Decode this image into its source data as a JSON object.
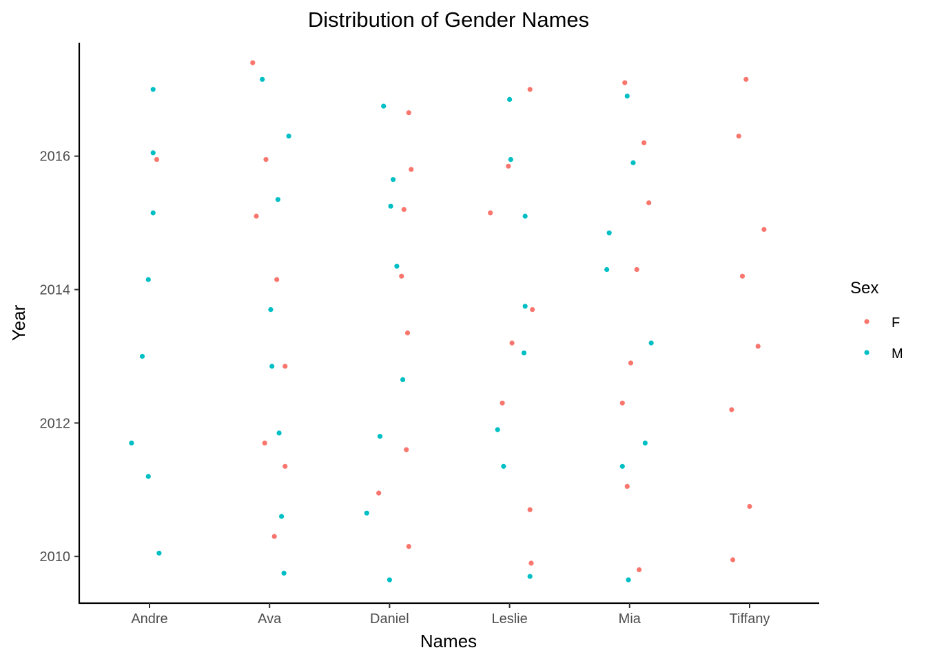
{
  "chart_data": {
    "type": "scatter",
    "title": "Distribution of Gender Names",
    "xlabel": "Names",
    "ylabel": "Year",
    "categories": [
      "Andre",
      "Ava",
      "Daniel",
      "Leslie",
      "Mia",
      "Tiffany"
    ],
    "y_ticks": [
      2010,
      2012,
      2014,
      2016
    ],
    "ylim": [
      2009.3,
      2017.7
    ],
    "grid": false,
    "jitter": true,
    "legend": {
      "title": "Sex",
      "position": "right"
    },
    "series": [
      {
        "name": "F",
        "color": "#F8766D",
        "points": [
          {
            "category": "Andre",
            "offset": 0.06,
            "y": 2015.95
          },
          {
            "category": "Ava",
            "offset": -0.14,
            "y": 2017.4
          },
          {
            "category": "Ava",
            "offset": -0.03,
            "y": 2015.95
          },
          {
            "category": "Ava",
            "offset": -0.11,
            "y": 2015.1
          },
          {
            "category": "Ava",
            "offset": 0.06,
            "y": 2014.15
          },
          {
            "category": "Ava",
            "offset": 0.13,
            "y": 2012.85
          },
          {
            "category": "Ava",
            "offset": -0.04,
            "y": 2011.7
          },
          {
            "category": "Ava",
            "offset": 0.13,
            "y": 2011.35
          },
          {
            "category": "Ava",
            "offset": 0.04,
            "y": 2010.3
          },
          {
            "category": "Daniel",
            "offset": 0.16,
            "y": 2016.65
          },
          {
            "category": "Daniel",
            "offset": 0.18,
            "y": 2015.8
          },
          {
            "category": "Daniel",
            "offset": 0.12,
            "y": 2015.2
          },
          {
            "category": "Daniel",
            "offset": 0.1,
            "y": 2014.2
          },
          {
            "category": "Daniel",
            "offset": 0.15,
            "y": 2013.35
          },
          {
            "category": "Daniel",
            "offset": 0.14,
            "y": 2011.6
          },
          {
            "category": "Daniel",
            "offset": -0.09,
            "y": 2010.95
          },
          {
            "category": "Daniel",
            "offset": 0.16,
            "y": 2010.15
          },
          {
            "category": "Leslie",
            "offset": 0.17,
            "y": 2017.0
          },
          {
            "category": "Leslie",
            "offset": -0.01,
            "y": 2015.85
          },
          {
            "category": "Leslie",
            "offset": -0.16,
            "y": 2015.15
          },
          {
            "category": "Leslie",
            "offset": 0.19,
            "y": 2013.7
          },
          {
            "category": "Leslie",
            "offset": 0.02,
            "y": 2013.2
          },
          {
            "category": "Leslie",
            "offset": -0.06,
            "y": 2012.3
          },
          {
            "category": "Leslie",
            "offset": 0.17,
            "y": 2010.7
          },
          {
            "category": "Leslie",
            "offset": 0.18,
            "y": 2009.9
          },
          {
            "category": "Mia",
            "offset": -0.04,
            "y": 2017.1
          },
          {
            "category": "Mia",
            "offset": 0.12,
            "y": 2016.2
          },
          {
            "category": "Mia",
            "offset": 0.16,
            "y": 2015.3
          },
          {
            "category": "Mia",
            "offset": 0.06,
            "y": 2014.3
          },
          {
            "category": "Mia",
            "offset": 0.01,
            "y": 2012.9
          },
          {
            "category": "Mia",
            "offset": -0.06,
            "y": 2012.3
          },
          {
            "category": "Mia",
            "offset": -0.02,
            "y": 2011.05
          },
          {
            "category": "Mia",
            "offset": 0.08,
            "y": 2009.8
          },
          {
            "category": "Tiffany",
            "offset": -0.03,
            "y": 2017.15
          },
          {
            "category": "Tiffany",
            "offset": -0.09,
            "y": 2016.3
          },
          {
            "category": "Tiffany",
            "offset": 0.12,
            "y": 2014.9
          },
          {
            "category": "Tiffany",
            "offset": -0.06,
            "y": 2014.2
          },
          {
            "category": "Tiffany",
            "offset": 0.07,
            "y": 2013.15
          },
          {
            "category": "Tiffany",
            "offset": -0.15,
            "y": 2012.2
          },
          {
            "category": "Tiffany",
            "offset": 0.0,
            "y": 2010.75
          },
          {
            "category": "Tiffany",
            "offset": -0.14,
            "y": 2009.95
          }
        ]
      },
      {
        "name": "M",
        "color": "#00BFC4",
        "points": [
          {
            "category": "Andre",
            "offset": 0.03,
            "y": 2017.0
          },
          {
            "category": "Andre",
            "offset": 0.03,
            "y": 2016.05
          },
          {
            "category": "Andre",
            "offset": 0.03,
            "y": 2015.15
          },
          {
            "category": "Andre",
            "offset": -0.01,
            "y": 2014.15
          },
          {
            "category": "Andre",
            "offset": -0.06,
            "y": 2013.0
          },
          {
            "category": "Andre",
            "offset": -0.15,
            "y": 2011.7
          },
          {
            "category": "Andre",
            "offset": -0.01,
            "y": 2011.2
          },
          {
            "category": "Andre",
            "offset": 0.08,
            "y": 2010.05
          },
          {
            "category": "Ava",
            "offset": -0.06,
            "y": 2017.15
          },
          {
            "category": "Ava",
            "offset": 0.16,
            "y": 2016.3
          },
          {
            "category": "Ava",
            "offset": 0.07,
            "y": 2015.35
          },
          {
            "category": "Ava",
            "offset": 0.01,
            "y": 2013.7
          },
          {
            "category": "Ava",
            "offset": 0.02,
            "y": 2012.85
          },
          {
            "category": "Ava",
            "offset": 0.08,
            "y": 2011.85
          },
          {
            "category": "Ava",
            "offset": 0.1,
            "y": 2010.6
          },
          {
            "category": "Ava",
            "offset": 0.12,
            "y": 2009.75
          },
          {
            "category": "Daniel",
            "offset": -0.05,
            "y": 2016.75
          },
          {
            "category": "Daniel",
            "offset": 0.03,
            "y": 2015.65
          },
          {
            "category": "Daniel",
            "offset": 0.01,
            "y": 2015.25
          },
          {
            "category": "Daniel",
            "offset": 0.06,
            "y": 2014.35
          },
          {
            "category": "Daniel",
            "offset": 0.11,
            "y": 2012.65
          },
          {
            "category": "Daniel",
            "offset": -0.08,
            "y": 2011.8
          },
          {
            "category": "Daniel",
            "offset": -0.19,
            "y": 2010.65
          },
          {
            "category": "Daniel",
            "offset": 0.0,
            "y": 2009.65
          },
          {
            "category": "Leslie",
            "offset": 0.0,
            "y": 2016.85
          },
          {
            "category": "Leslie",
            "offset": 0.01,
            "y": 2015.95
          },
          {
            "category": "Leslie",
            "offset": 0.13,
            "y": 2015.1
          },
          {
            "category": "Leslie",
            "offset": 0.13,
            "y": 2013.75
          },
          {
            "category": "Leslie",
            "offset": 0.12,
            "y": 2013.05
          },
          {
            "category": "Leslie",
            "offset": -0.1,
            "y": 2011.9
          },
          {
            "category": "Leslie",
            "offset": -0.05,
            "y": 2011.35
          },
          {
            "category": "Leslie",
            "offset": 0.17,
            "y": 2009.7
          },
          {
            "category": "Mia",
            "offset": -0.02,
            "y": 2016.9
          },
          {
            "category": "Mia",
            "offset": 0.03,
            "y": 2015.9
          },
          {
            "category": "Mia",
            "offset": -0.17,
            "y": 2014.85
          },
          {
            "category": "Mia",
            "offset": -0.19,
            "y": 2014.3
          },
          {
            "category": "Mia",
            "offset": 0.18,
            "y": 2013.2
          },
          {
            "category": "Mia",
            "offset": 0.13,
            "y": 2011.7
          },
          {
            "category": "Mia",
            "offset": -0.06,
            "y": 2011.35
          },
          {
            "category": "Mia",
            "offset": -0.01,
            "y": 2009.65
          }
        ]
      }
    ]
  }
}
